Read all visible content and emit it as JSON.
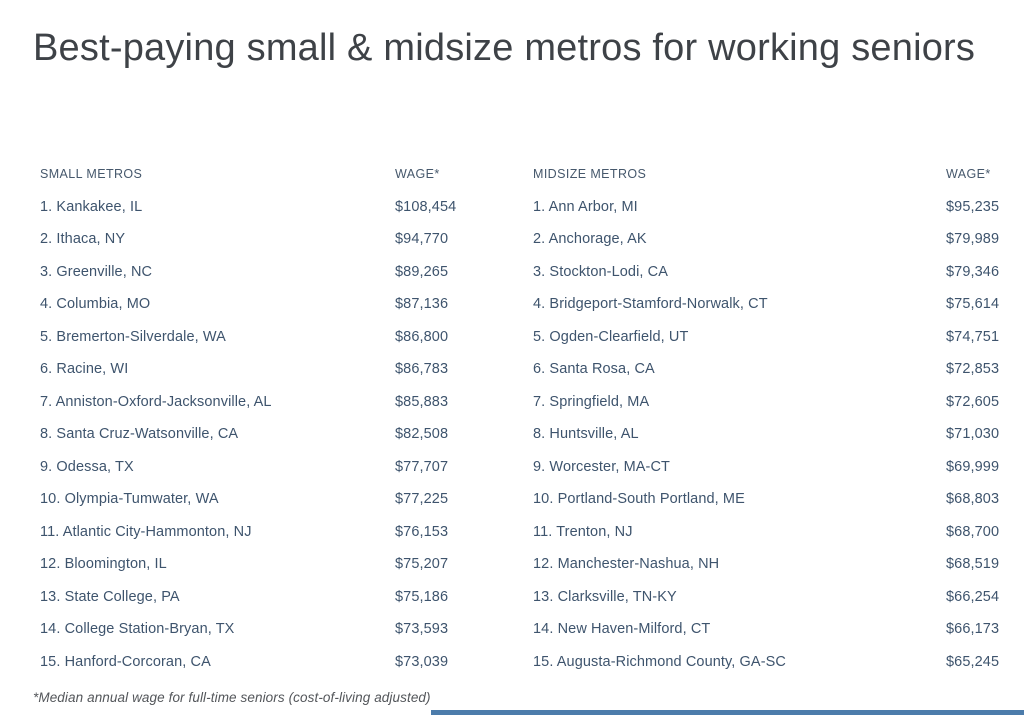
{
  "chart_data": {
    "type": "table",
    "title": "Best-paying small & midsize metros for working seniors",
    "footnote": "*Median annual wage for full-time seniors (cost-of-living adjusted)",
    "layout": "two side-by-side rank tables, wage column left-aligned",
    "tables": [
      {
        "name_header": "SMALL METROS",
        "wage_header": "WAGE*",
        "rows": [
          {
            "rank": 1,
            "metro": "Kankakee, IL",
            "wage": "$108,454",
            "wage_value": 108454
          },
          {
            "rank": 2,
            "metro": "Ithaca, NY",
            "wage": "$94,770",
            "wage_value": 94770
          },
          {
            "rank": 3,
            "metro": "Greenville, NC",
            "wage": "$89,265",
            "wage_value": 89265
          },
          {
            "rank": 4,
            "metro": "Columbia, MO",
            "wage": "$87,136",
            "wage_value": 87136
          },
          {
            "rank": 5,
            "metro": "Bremerton-Silverdale, WA",
            "wage": "$86,800",
            "wage_value": 86800
          },
          {
            "rank": 6,
            "metro": "Racine, WI",
            "wage": "$86,783",
            "wage_value": 86783
          },
          {
            "rank": 7,
            "metro": "Anniston-Oxford-Jacksonville, AL",
            "wage": "$85,883",
            "wage_value": 85883
          },
          {
            "rank": 8,
            "metro": "Santa Cruz-Watsonville, CA",
            "wage": "$82,508",
            "wage_value": 82508
          },
          {
            "rank": 9,
            "metro": "Odessa, TX",
            "wage": "$77,707",
            "wage_value": 77707
          },
          {
            "rank": 10,
            "metro": "Olympia-Tumwater, WA",
            "wage": "$77,225",
            "wage_value": 77225
          },
          {
            "rank": 11,
            "metro": "Atlantic City-Hammonton, NJ",
            "wage": "$76,153",
            "wage_value": 76153
          },
          {
            "rank": 12,
            "metro": "Bloomington, IL",
            "wage": "$75,207",
            "wage_value": 75207
          },
          {
            "rank": 13,
            "metro": "State College, PA",
            "wage": "$75,186",
            "wage_value": 75186
          },
          {
            "rank": 14,
            "metro": "College Station-Bryan, TX",
            "wage": "$73,593",
            "wage_value": 73593
          },
          {
            "rank": 15,
            "metro": "Hanford-Corcoran, CA",
            "wage": "$73,039",
            "wage_value": 73039
          }
        ]
      },
      {
        "name_header": "MIDSIZE METROS",
        "wage_header": "WAGE*",
        "rows": [
          {
            "rank": 1,
            "metro": "Ann Arbor, MI",
            "wage": "$95,235",
            "wage_value": 95235
          },
          {
            "rank": 2,
            "metro": "Anchorage, AK",
            "wage": "$79,989",
            "wage_value": 79989
          },
          {
            "rank": 3,
            "metro": "Stockton-Lodi, CA",
            "wage": "$79,346",
            "wage_value": 79346
          },
          {
            "rank": 4,
            "metro": "Bridgeport-Stamford-Norwalk, CT",
            "wage": "$75,614",
            "wage_value": 75614
          },
          {
            "rank": 5,
            "metro": "Ogden-Clearfield, UT",
            "wage": "$74,751",
            "wage_value": 74751
          },
          {
            "rank": 6,
            "metro": "Santa Rosa, CA",
            "wage": "$72,853",
            "wage_value": 72853
          },
          {
            "rank": 7,
            "metro": "Springfield, MA",
            "wage": "$72,605",
            "wage_value": 72605
          },
          {
            "rank": 8,
            "metro": "Huntsville, AL",
            "wage": "$71,030",
            "wage_value": 71030
          },
          {
            "rank": 9,
            "metro": "Worcester, MA-CT",
            "wage": "$69,999",
            "wage_value": 69999
          },
          {
            "rank": 10,
            "metro": "Portland-South Portland, ME",
            "wage": "$68,803",
            "wage_value": 68803
          },
          {
            "rank": 11,
            "metro": "Trenton, NJ",
            "wage": "$68,700",
            "wage_value": 68700
          },
          {
            "rank": 12,
            "metro": "Manchester-Nashua, NH",
            "wage": "$68,519",
            "wage_value": 68519
          },
          {
            "rank": 13,
            "metro": "Clarksville, TN-KY",
            "wage": "$66,254",
            "wage_value": 66254
          },
          {
            "rank": 14,
            "metro": "New Haven-Milford, CT",
            "wage": "$66,173",
            "wage_value": 66173
          },
          {
            "rank": 15,
            "metro": "Augusta-Richmond County, GA-SC",
            "wage": "$65,245",
            "wage_value": 65245
          }
        ]
      }
    ]
  },
  "colors": {
    "background": "#ffffff",
    "title_text": "#3e4247",
    "table_text": "#3e546d",
    "header_text": "#46586c",
    "footnote_text": "#53565a",
    "accent_bar": "#4c7cab"
  }
}
